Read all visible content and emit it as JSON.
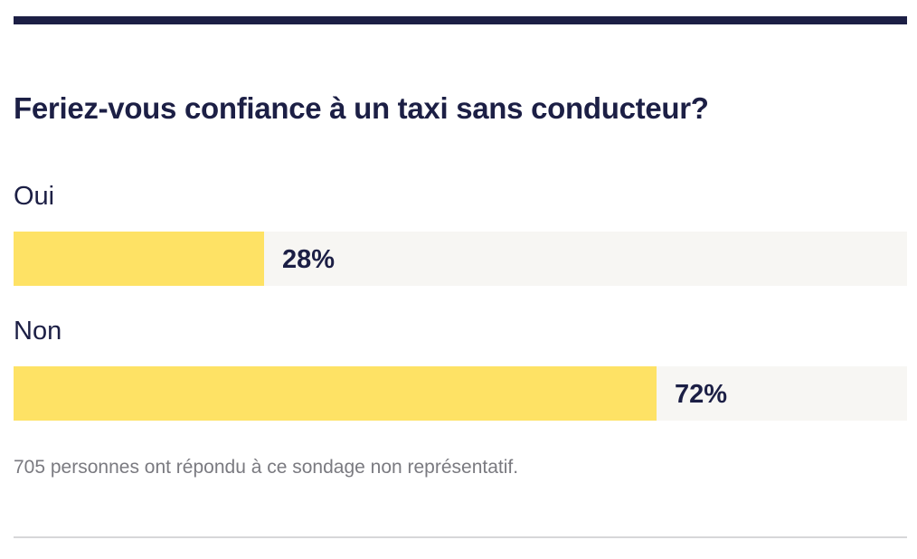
{
  "poll": {
    "question": "Feriez-vous confiance à un taxi sans conducteur?",
    "options": [
      {
        "label": "Oui",
        "percent_label": "28%",
        "fraction": 0.28
      },
      {
        "label": "Non",
        "percent_label": "72%",
        "fraction": 0.72
      }
    ],
    "footnote": "705 personnes ont répondu à ce sondage non représentatif."
  },
  "colors": {
    "accent_rule": "#1c1f45",
    "bar_fill": "#fee265",
    "bar_track": "#f7f6f3",
    "text": "#1c1f45",
    "muted_text": "#7a7a80"
  }
}
